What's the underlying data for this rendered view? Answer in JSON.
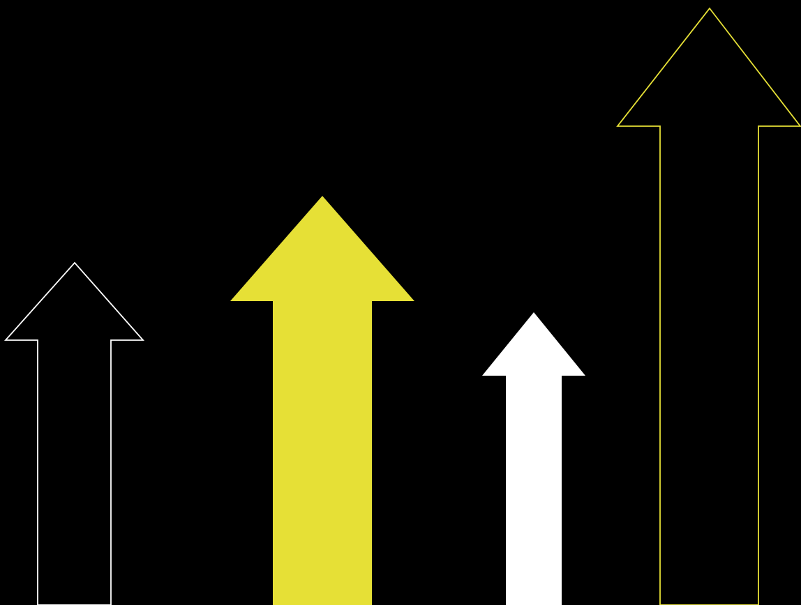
{
  "colors": {
    "background": "#000000",
    "yellow": "#E6E036",
    "white": "#FFFFFF"
  },
  "arrows": [
    {
      "name": "white-outline-arrow",
      "style": "outline",
      "color": "white"
    },
    {
      "name": "yellow-filled-arrow",
      "style": "filled",
      "color": "yellow"
    },
    {
      "name": "white-filled-arrow",
      "style": "filled",
      "color": "white"
    },
    {
      "name": "yellow-outline-arrow",
      "style": "outline",
      "color": "yellow"
    }
  ]
}
